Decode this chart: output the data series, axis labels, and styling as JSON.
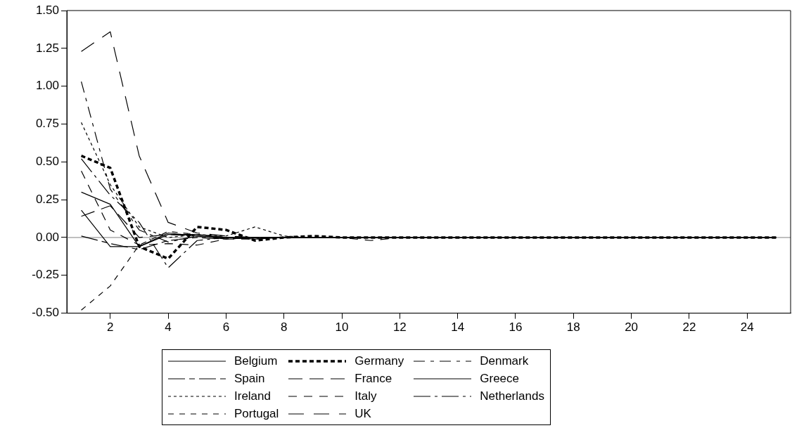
{
  "chart_data": {
    "type": "line",
    "x": [
      1,
      2,
      3,
      4,
      5,
      6,
      7,
      8,
      9,
      10,
      11,
      12,
      13,
      14,
      15,
      16,
      17,
      18,
      19,
      20,
      21,
      22,
      23,
      24,
      25
    ],
    "xlim": [
      0.5,
      25.5
    ],
    "xticks": [
      2,
      4,
      6,
      8,
      10,
      12,
      14,
      16,
      18,
      20,
      22,
      24
    ],
    "ylim": [
      -0.5,
      1.5
    ],
    "yticks": [
      {
        "value": -0.5,
        "label": "-0.50"
      },
      {
        "value": -0.25,
        "label": "-0.25"
      },
      {
        "value": 0,
        "label": "0.00"
      },
      {
        "value": 0.25,
        "label": "0.25"
      },
      {
        "value": 0.5,
        "label": "0.50"
      },
      {
        "value": 0.75,
        "label": "0.75"
      },
      {
        "value": 1,
        "label": "1.00"
      },
      {
        "value": 1.25,
        "label": "1.25"
      },
      {
        "value": 1.5,
        "label": "1.50"
      }
    ],
    "grid": false,
    "legend": "bottom",
    "marker": "none",
    "ref_lines": [
      {
        "axis": "y",
        "value": 0,
        "color": "#808080"
      }
    ],
    "series": [
      {
        "name": "Belgium",
        "color": "#000000",
        "line_style": "solid",
        "values": [
          0.3,
          0.22,
          -0.06,
          0.03,
          0.01,
          0.0,
          0,
          0,
          0,
          0,
          0,
          0,
          0,
          0,
          0,
          0,
          0,
          0,
          0,
          0,
          0,
          0,
          0,
          0,
          0
        ]
      },
      {
        "name": "Germany",
        "color": "#000000",
        "line_style": "dashed",
        "values": [
          0.54,
          0.46,
          -0.06,
          -0.14,
          0.07,
          0.05,
          -0.02,
          0,
          0.01,
          0,
          0,
          0,
          0,
          0,
          0,
          0,
          0,
          0,
          0,
          0,
          0,
          0,
          0,
          0,
          0
        ]
      },
      {
        "name": "Denmark",
        "color": "#000000",
        "line_style": "dashed",
        "values": [
          1.03,
          0.32,
          0.05,
          -0.03,
          0.01,
          0.0,
          0,
          0,
          0,
          0,
          0,
          0,
          0,
          0,
          0,
          0,
          0,
          0,
          0,
          0,
          0,
          0,
          0,
          0,
          0
        ]
      },
      {
        "name": "Spain",
        "color": "#000000",
        "line_style": "dashed",
        "values": [
          0.01,
          -0.04,
          -0.08,
          -0.02,
          0.0,
          -0.01,
          0,
          0,
          0,
          0,
          0,
          0,
          0,
          0,
          0,
          0,
          0,
          0,
          0,
          0,
          0,
          0,
          0,
          0,
          0
        ]
      },
      {
        "name": "France",
        "color": "#000000",
        "line_style": "dashed",
        "values": [
          0.14,
          0.21,
          0.0,
          0.02,
          0.01,
          -0.01,
          0,
          0,
          0,
          0,
          0,
          0,
          0,
          0,
          0,
          0,
          0,
          0,
          0,
          0,
          0,
          0,
          0,
          0,
          0
        ]
      },
      {
        "name": "Greece",
        "color": "#000000",
        "line_style": "solid",
        "values": [
          0.18,
          -0.06,
          -0.06,
          0.02,
          0.02,
          0.0,
          -0.01,
          0,
          0,
          0,
          0,
          0,
          0,
          0,
          0,
          0,
          0,
          0,
          0,
          0,
          0,
          0,
          0,
          0,
          0
        ]
      },
      {
        "name": "Ireland",
        "color": "#000000",
        "line_style": "dotted",
        "values": [
          0.76,
          0.35,
          0.07,
          0.0,
          0.02,
          0.01,
          0.07,
          0.01,
          0,
          0,
          0,
          0,
          0,
          0,
          0,
          0,
          0,
          0,
          0,
          0,
          0,
          0,
          0,
          0,
          0
        ]
      },
      {
        "name": "Italy",
        "color": "#000000",
        "line_style": "dashed",
        "values": [
          0.44,
          0.05,
          -0.05,
          -0.04,
          -0.05,
          -0.01,
          -0.01,
          0,
          0,
          0,
          -0.02,
          0,
          0,
          0,
          0,
          0,
          0,
          0,
          0,
          0,
          0,
          0,
          0,
          0,
          0
        ]
      },
      {
        "name": "Netherlands",
        "color": "#000000",
        "line_style": "dashed",
        "values": [
          0.52,
          0.28,
          0.1,
          -0.2,
          -0.02,
          0.0,
          0,
          0,
          0,
          0,
          0,
          0,
          0,
          0,
          0,
          0,
          0,
          0,
          0,
          0,
          0,
          0,
          0,
          0,
          0
        ]
      },
      {
        "name": "Portugal",
        "color": "#000000",
        "line_style": "dashed",
        "values": [
          -0.48,
          -0.32,
          -0.05,
          0.04,
          0.02,
          0.0,
          0,
          0,
          0,
          0,
          0,
          0,
          0,
          0,
          0,
          0,
          0,
          0,
          0,
          0,
          0,
          0,
          0,
          0,
          0
        ]
      },
      {
        "name": "UK",
        "color": "#000000",
        "line_style": "dashed",
        "values": [
          1.23,
          1.36,
          0.54,
          0.1,
          0.03,
          0.01,
          0,
          0,
          0,
          0,
          0,
          0,
          0,
          0,
          0,
          0,
          0,
          0,
          0,
          0,
          0,
          0,
          0,
          0,
          0
        ]
      }
    ]
  }
}
